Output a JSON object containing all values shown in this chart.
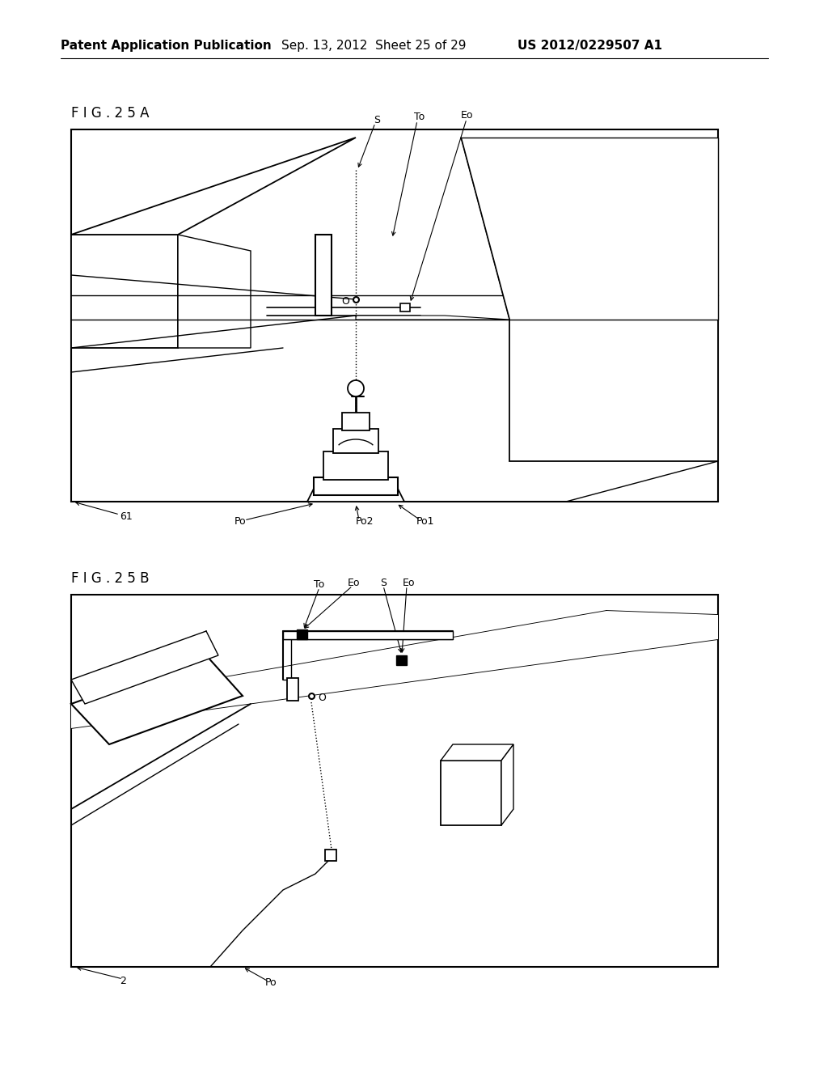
{
  "bg_color": "#ffffff",
  "header_text": "Patent Application Publication",
  "header_date": "Sep. 13, 2012  Sheet 25 of 29",
  "header_patent": "US 2012/0229507 A1",
  "fig_label_A": "F I G . 2 5 A",
  "fig_label_B": "F I G . 2 5 B"
}
